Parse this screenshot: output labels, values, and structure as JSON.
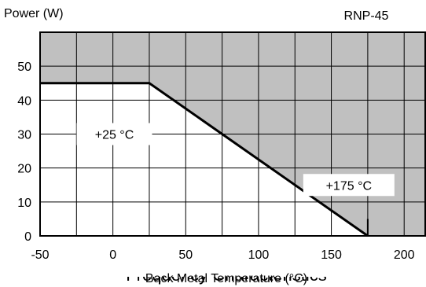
{
  "chart_data": {
    "type": "area",
    "ylabel": "Power (W)",
    "xlabel": "Back Metal Temperature (°C)",
    "model": "RNP-45",
    "xlim": [
      -50,
      215
    ],
    "ylim": [
      0,
      60
    ],
    "x_ticks": [
      -50,
      0,
      50,
      100,
      150,
      200
    ],
    "y_ticks": [
      0,
      10,
      20,
      30,
      40,
      50
    ],
    "x_tick_labels": [
      "-50",
      "0",
      "50",
      "100",
      "150",
      "200"
    ],
    "y_tick_labels": [
      "0",
      "10",
      "20",
      "30",
      "40",
      "50"
    ],
    "grid": true,
    "series": [
      {
        "x": [
          -50,
          25,
          175
        ],
        "y": [
          45,
          45,
          0
        ]
      }
    ],
    "annotations": [
      {
        "text": "+25 °C",
        "x": 1,
        "y": 30
      },
      {
        "text": "+175 °C",
        "x": 162,
        "y": 15
      }
    ],
    "colors": {
      "shaded": "#c0c0c0",
      "line": "#000000",
      "grid": "#000000"
    },
    "below_text": "Frequency Characteristics"
  }
}
